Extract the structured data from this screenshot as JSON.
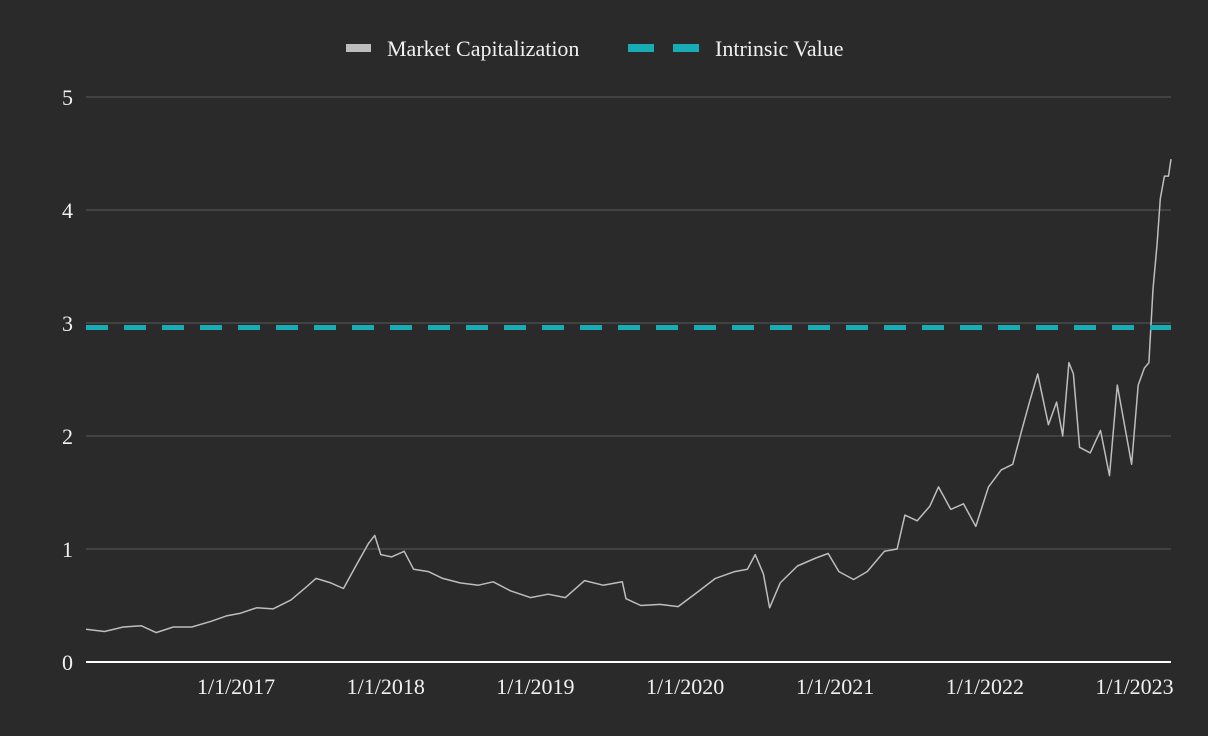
{
  "chart_data": {
    "type": "line",
    "title": "",
    "xlabel": "",
    "ylabel": "",
    "ylim": [
      0,
      5
    ],
    "xlim": [
      "2016-01-01",
      "2023-03-31"
    ],
    "y_ticks": [
      "0",
      "1",
      "2",
      "3",
      "4",
      "5"
    ],
    "x_ticks": [
      {
        "date": "2017-01-01",
        "label": "1/1/2017"
      },
      {
        "date": "2018-01-01",
        "label": "1/1/2018"
      },
      {
        "date": "2019-01-01",
        "label": "1/1/2019"
      },
      {
        "date": "2020-01-01",
        "label": "1/1/2020"
      },
      {
        "date": "2021-01-01",
        "label": "1/1/2021"
      },
      {
        "date": "2022-01-01",
        "label": "1/1/2022"
      },
      {
        "date": "2023-01-01",
        "label": "1/1/2023"
      }
    ],
    "grid": "horizontal",
    "legend_position": "top-center",
    "series": [
      {
        "name": "Market Capitalization",
        "style": "solid",
        "color": "#bdbdbd",
        "points": [
          [
            "2016-01-01",
            0.29
          ],
          [
            "2016-02-15",
            0.27
          ],
          [
            "2016-04-01",
            0.31
          ],
          [
            "2016-05-15",
            0.32
          ],
          [
            "2016-06-20",
            0.26
          ],
          [
            "2016-08-01",
            0.31
          ],
          [
            "2016-09-15",
            0.31
          ],
          [
            "2016-11-01",
            0.36
          ],
          [
            "2016-12-10",
            0.41
          ],
          [
            "2017-01-10",
            0.43
          ],
          [
            "2017-02-20",
            0.48
          ],
          [
            "2017-04-01",
            0.47
          ],
          [
            "2017-05-15",
            0.55
          ],
          [
            "2017-06-20",
            0.66
          ],
          [
            "2017-07-15",
            0.74
          ],
          [
            "2017-08-20",
            0.7
          ],
          [
            "2017-09-20",
            0.65
          ],
          [
            "2017-10-20",
            0.85
          ],
          [
            "2017-11-20",
            1.05
          ],
          [
            "2017-12-05",
            1.12
          ],
          [
            "2017-12-20",
            0.95
          ],
          [
            "2018-01-15",
            0.93
          ],
          [
            "2018-02-15",
            0.98
          ],
          [
            "2018-03-10",
            0.82
          ],
          [
            "2018-04-15",
            0.8
          ],
          [
            "2018-05-20",
            0.74
          ],
          [
            "2018-07-01",
            0.7
          ],
          [
            "2018-08-15",
            0.68
          ],
          [
            "2018-09-20",
            0.71
          ],
          [
            "2018-11-01",
            0.63
          ],
          [
            "2018-12-20",
            0.57
          ],
          [
            "2019-02-01",
            0.6
          ],
          [
            "2019-03-15",
            0.57
          ],
          [
            "2019-05-01",
            0.72
          ],
          [
            "2019-06-15",
            0.68
          ],
          [
            "2019-08-01",
            0.71
          ],
          [
            "2019-08-10",
            0.56
          ],
          [
            "2019-09-15",
            0.5
          ],
          [
            "2019-11-01",
            0.51
          ],
          [
            "2019-12-15",
            0.49
          ],
          [
            "2020-02-01",
            0.62
          ],
          [
            "2020-03-15",
            0.74
          ],
          [
            "2020-05-01",
            0.8
          ],
          [
            "2020-06-01",
            0.82
          ],
          [
            "2020-06-20",
            0.95
          ],
          [
            "2020-07-10",
            0.78
          ],
          [
            "2020-07-25",
            0.48
          ],
          [
            "2020-08-20",
            0.7
          ],
          [
            "2020-10-01",
            0.85
          ],
          [
            "2020-11-15",
            0.92
          ],
          [
            "2020-12-15",
            0.96
          ],
          [
            "2021-01-10",
            0.8
          ],
          [
            "2021-02-15",
            0.73
          ],
          [
            "2021-03-20",
            0.8
          ],
          [
            "2021-05-01",
            0.98
          ],
          [
            "2021-06-01",
            1.0
          ],
          [
            "2021-06-20",
            1.3
          ],
          [
            "2021-07-20",
            1.25
          ],
          [
            "2021-08-20",
            1.38
          ],
          [
            "2021-09-10",
            1.55
          ],
          [
            "2021-10-10",
            1.35
          ],
          [
            "2021-11-10",
            1.4
          ],
          [
            "2021-12-10",
            1.2
          ],
          [
            "2022-01-10",
            1.55
          ],
          [
            "2022-02-10",
            1.7
          ],
          [
            "2022-03-10",
            1.75
          ],
          [
            "2022-04-01",
            2.05
          ],
          [
            "2022-04-20",
            2.3
          ],
          [
            "2022-05-10",
            2.55
          ],
          [
            "2022-06-05",
            2.1
          ],
          [
            "2022-06-25",
            2.3
          ],
          [
            "2022-07-10",
            2.0
          ],
          [
            "2022-07-25",
            2.65
          ],
          [
            "2022-08-05",
            2.55
          ],
          [
            "2022-08-20",
            1.9
          ],
          [
            "2022-09-15",
            1.85
          ],
          [
            "2022-10-10",
            2.05
          ],
          [
            "2022-11-01",
            1.65
          ],
          [
            "2022-11-20",
            2.45
          ],
          [
            "2022-12-10",
            2.05
          ],
          [
            "2022-12-25",
            1.75
          ],
          [
            "2023-01-10",
            2.45
          ],
          [
            "2023-01-25",
            2.6
          ],
          [
            "2023-02-05",
            2.65
          ],
          [
            "2023-02-15",
            3.3
          ],
          [
            "2023-02-25",
            3.7
          ],
          [
            "2023-03-05",
            4.1
          ],
          [
            "2023-03-15",
            4.3
          ],
          [
            "2023-03-25",
            4.3
          ],
          [
            "2023-03-31",
            4.45
          ]
        ]
      },
      {
        "name": "Intrinsic Value",
        "style": "dashed",
        "color": "#1aacb4",
        "points": [
          [
            "2016-01-01",
            2.96
          ],
          [
            "2023-03-31",
            2.96
          ]
        ]
      }
    ]
  },
  "legend": {
    "items": [
      {
        "label": "Market Capitalization",
        "color": "#bdbdbd",
        "style": "solid"
      },
      {
        "label": "Intrinsic Value",
        "color": "#1aacb4",
        "style": "dashed"
      }
    ]
  },
  "colors": {
    "background": "#2a2a2a",
    "grid": "#4a4a4a",
    "axis": "#ffffff",
    "text": "#f0f0f0"
  }
}
